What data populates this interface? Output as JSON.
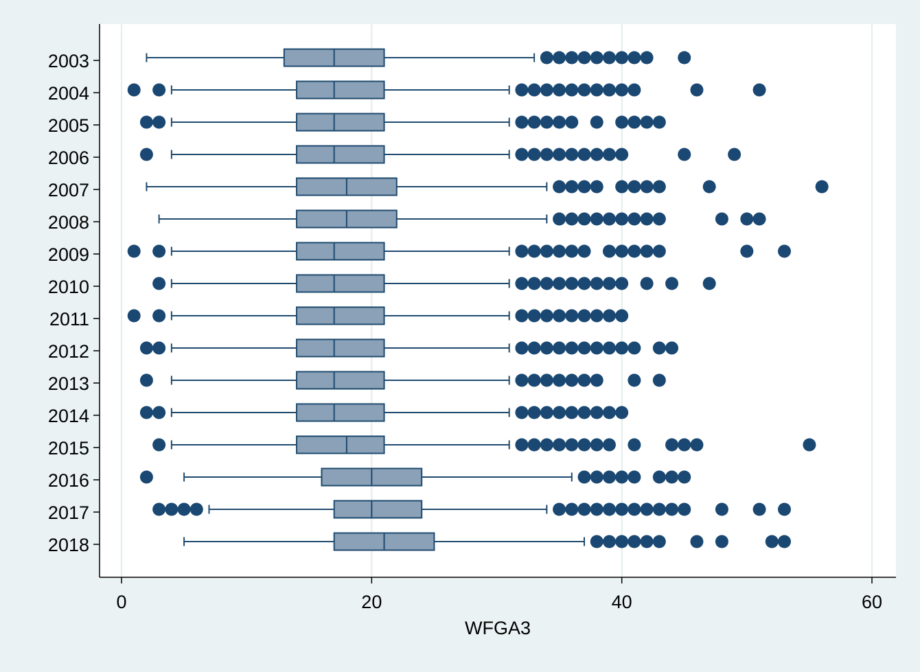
{
  "chart_data": {
    "type": "boxplot",
    "orientation": "horizontal",
    "title": "",
    "xlabel": "WFGA3",
    "ylabel": "",
    "xlim": [
      0,
      60
    ],
    "xticks": [
      "0",
      "20",
      "40",
      "60"
    ],
    "grid": true,
    "legend": "none",
    "colors": {
      "page_background": "#eaf2f3",
      "plot_background": "#ffffff",
      "box_fill": "#8aa1b8",
      "box_stroke": "#1f4a6e",
      "whisker": "#1f4a6e",
      "outlier": "#1a4872",
      "gridline": "#e3ecee",
      "axis": "#000000"
    },
    "categories": [
      "2003",
      "2004",
      "2005",
      "2006",
      "2007",
      "2008",
      "2009",
      "2010",
      "2011",
      "2012",
      "2013",
      "2014",
      "2015",
      "2016",
      "2017",
      "2018"
    ],
    "boxes": [
      {
        "label": "2003",
        "whisker_low": 2,
        "q1": 13,
        "median": 17,
        "q3": 21,
        "whisker_high": 33,
        "outliers": [
          34,
          35,
          36,
          37,
          38,
          39,
          40,
          41,
          42,
          45
        ]
      },
      {
        "label": "2004",
        "whisker_low": 4,
        "q1": 14,
        "median": 17,
        "q3": 21,
        "whisker_high": 31,
        "outliers": [
          1,
          3,
          32,
          33,
          34,
          35,
          36,
          37,
          38,
          39,
          40,
          41,
          46,
          51
        ]
      },
      {
        "label": "2005",
        "whisker_low": 4,
        "q1": 14,
        "median": 17,
        "q3": 21,
        "whisker_high": 31,
        "outliers": [
          2,
          3,
          32,
          33,
          34,
          35,
          36,
          38,
          40,
          41,
          42,
          43
        ]
      },
      {
        "label": "2006",
        "whisker_low": 4,
        "q1": 14,
        "median": 17,
        "q3": 21,
        "whisker_high": 31,
        "outliers": [
          2,
          32,
          33,
          34,
          35,
          36,
          37,
          38,
          39,
          40,
          45,
          49
        ]
      },
      {
        "label": "2007",
        "whisker_low": 2,
        "q1": 14,
        "median": 18,
        "q3": 22,
        "whisker_high": 34,
        "outliers": [
          35,
          36,
          37,
          38,
          40,
          41,
          42,
          43,
          47,
          56
        ]
      },
      {
        "label": "2008",
        "whisker_low": 3,
        "q1": 14,
        "median": 18,
        "q3": 22,
        "whisker_high": 34,
        "outliers": [
          35,
          36,
          37,
          38,
          39,
          40,
          41,
          42,
          43,
          48,
          50,
          51
        ]
      },
      {
        "label": "2009",
        "whisker_low": 4,
        "q1": 14,
        "median": 17,
        "q3": 21,
        "whisker_high": 31,
        "outliers": [
          1,
          3,
          32,
          33,
          34,
          35,
          36,
          37,
          39,
          40,
          41,
          42,
          43,
          50,
          53
        ]
      },
      {
        "label": "2010",
        "whisker_low": 4,
        "q1": 14,
        "median": 17,
        "q3": 21,
        "whisker_high": 31,
        "outliers": [
          3,
          32,
          33,
          34,
          35,
          36,
          37,
          38,
          39,
          40,
          42,
          44,
          47
        ]
      },
      {
        "label": "2011",
        "whisker_low": 4,
        "q1": 14,
        "median": 17,
        "q3": 21,
        "whisker_high": 31,
        "outliers": [
          1,
          3,
          32,
          33,
          34,
          35,
          36,
          37,
          38,
          39,
          40
        ]
      },
      {
        "label": "2012",
        "whisker_low": 4,
        "q1": 14,
        "median": 17,
        "q3": 21,
        "whisker_high": 31,
        "outliers": [
          2,
          3,
          32,
          33,
          34,
          35,
          36,
          37,
          38,
          39,
          40,
          41,
          43,
          44
        ]
      },
      {
        "label": "2013",
        "whisker_low": 4,
        "q1": 14,
        "median": 17,
        "q3": 21,
        "whisker_high": 31,
        "outliers": [
          2,
          32,
          33,
          34,
          35,
          36,
          37,
          38,
          41,
          43
        ]
      },
      {
        "label": "2014",
        "whisker_low": 4,
        "q1": 14,
        "median": 17,
        "q3": 21,
        "whisker_high": 31,
        "outliers": [
          2,
          3,
          32,
          33,
          34,
          35,
          36,
          37,
          38,
          39,
          40
        ]
      },
      {
        "label": "2015",
        "whisker_low": 4,
        "q1": 14,
        "median": 18,
        "q3": 21,
        "whisker_high": 31,
        "outliers": [
          3,
          32,
          33,
          34,
          35,
          36,
          37,
          38,
          39,
          41,
          44,
          45,
          46,
          55
        ]
      },
      {
        "label": "2016",
        "whisker_low": 5,
        "q1": 16,
        "median": 20,
        "q3": 24,
        "whisker_high": 36,
        "outliers": [
          2,
          37,
          38,
          39,
          40,
          41,
          43,
          44,
          45
        ]
      },
      {
        "label": "2017",
        "whisker_low": 7,
        "q1": 17,
        "median": 20,
        "q3": 24,
        "whisker_high": 34,
        "outliers": [
          3,
          4,
          5,
          6,
          35,
          36,
          37,
          38,
          39,
          40,
          41,
          42,
          43,
          44,
          45,
          48,
          51,
          53
        ]
      },
      {
        "label": "2018",
        "whisker_low": 5,
        "q1": 17,
        "median": 21,
        "q3": 25,
        "whisker_high": 37,
        "outliers": [
          38,
          39,
          40,
          41,
          42,
          43,
          46,
          48,
          52,
          53
        ]
      }
    ]
  }
}
